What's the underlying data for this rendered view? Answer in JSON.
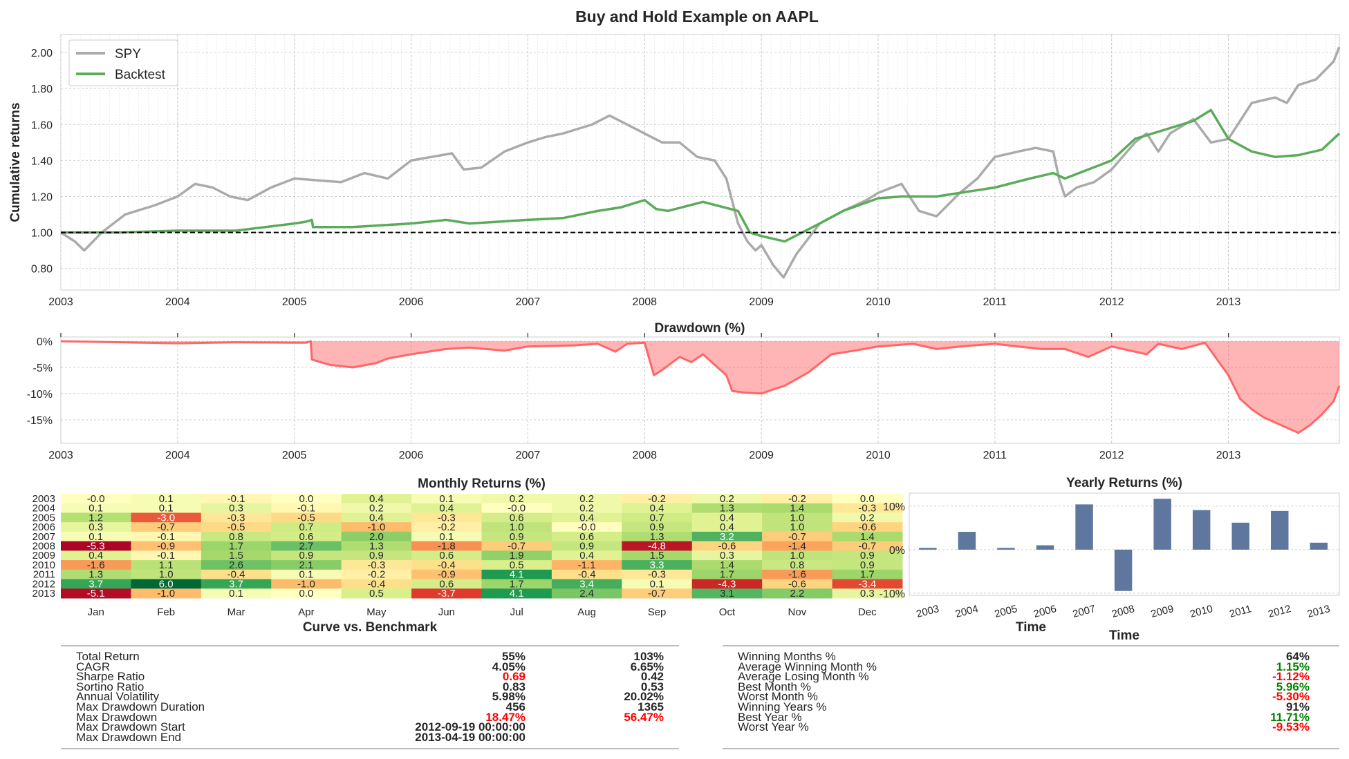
{
  "figure_title": "Buy and Hold Example on AAPL",
  "colors": {
    "spy": "#aaaaaa",
    "backtest": "#5aab5a",
    "drawdown": "#ff5a5a",
    "bars": "#5f769e",
    "positive": "#008000",
    "negative": "#ff0000"
  },
  "chart_data": [
    {
      "id": "cumulative",
      "type": "line",
      "title": "",
      "xlabel": "",
      "ylabel": "Cumulative returns",
      "xlim": [
        2003,
        2013.95
      ],
      "ylim": [
        0.68,
        2.1
      ],
      "x_ticks": [
        "2003",
        "2004",
        "2005",
        "2006",
        "2007",
        "2008",
        "2009",
        "2010",
        "2011",
        "2012",
        "2013"
      ],
      "y_ticks": [
        "0.80",
        "1.00",
        "1.20",
        "1.40",
        "1.60",
        "1.80",
        "2.00"
      ],
      "y_tick_values": [
        0.8,
        1.0,
        1.2,
        1.4,
        1.6,
        1.8,
        2.0
      ],
      "reference_line": 1.0,
      "legend": {
        "position": "top-left",
        "entries": [
          "SPY",
          "Backtest"
        ]
      },
      "grid": true,
      "series": [
        {
          "name": "SPY",
          "x": [
            2003.0,
            2003.12,
            2003.2,
            2003.35,
            2003.55,
            2003.8,
            2004.0,
            2004.15,
            2004.3,
            2004.45,
            2004.6,
            2004.8,
            2005.0,
            2005.2,
            2005.4,
            2005.6,
            2005.8,
            2006.0,
            2006.35,
            2006.45,
            2006.6,
            2006.8,
            2007.0,
            2007.15,
            2007.3,
            2007.45,
            2007.55,
            2007.7,
            2007.85,
            2008.0,
            2008.15,
            2008.3,
            2008.45,
            2008.6,
            2008.7,
            2008.8,
            2008.88,
            2008.95,
            2009.0,
            2009.1,
            2009.19,
            2009.3,
            2009.5,
            2009.7,
            2009.9,
            2010.0,
            2010.2,
            2010.35,
            2010.5,
            2010.7,
            2010.85,
            2011.0,
            2011.2,
            2011.35,
            2011.5,
            2011.55,
            2011.6,
            2011.7,
            2011.85,
            2012.0,
            2012.2,
            2012.3,
            2012.4,
            2012.5,
            2012.7,
            2012.85,
            2013.0,
            2013.2,
            2013.4,
            2013.5,
            2013.6,
            2013.75,
            2013.9,
            2013.95
          ],
          "y": [
            1.0,
            0.95,
            0.9,
            1.0,
            1.1,
            1.15,
            1.2,
            1.27,
            1.25,
            1.2,
            1.18,
            1.25,
            1.3,
            1.29,
            1.28,
            1.33,
            1.3,
            1.4,
            1.44,
            1.35,
            1.36,
            1.45,
            1.5,
            1.53,
            1.55,
            1.58,
            1.6,
            1.65,
            1.6,
            1.55,
            1.5,
            1.5,
            1.42,
            1.4,
            1.3,
            1.05,
            0.95,
            0.9,
            0.93,
            0.82,
            0.75,
            0.88,
            1.05,
            1.12,
            1.18,
            1.22,
            1.27,
            1.12,
            1.09,
            1.22,
            1.3,
            1.42,
            1.45,
            1.47,
            1.45,
            1.3,
            1.2,
            1.25,
            1.28,
            1.35,
            1.5,
            1.55,
            1.45,
            1.55,
            1.63,
            1.5,
            1.52,
            1.72,
            1.75,
            1.72,
            1.82,
            1.85,
            1.95,
            2.03
          ]
        },
        {
          "name": "Backtest",
          "x": [
            2003.0,
            2003.5,
            2004.0,
            2004.5,
            2005.0,
            2005.1,
            2005.15,
            2005.16,
            2005.5,
            2006.0,
            2006.3,
            2006.5,
            2007.0,
            2007.3,
            2007.6,
            2007.8,
            2008.0,
            2008.1,
            2008.2,
            2008.5,
            2008.8,
            2008.9,
            2009.0,
            2009.2,
            2009.5,
            2009.7,
            2010.0,
            2010.2,
            2010.5,
            2010.8,
            2011.0,
            2011.3,
            2011.5,
            2011.6,
            2011.8,
            2012.0,
            2012.2,
            2012.5,
            2012.7,
            2012.85,
            2013.0,
            2013.2,
            2013.4,
            2013.6,
            2013.8,
            2013.95
          ],
          "y": [
            1.0,
            1.0,
            1.01,
            1.01,
            1.05,
            1.06,
            1.07,
            1.03,
            1.03,
            1.05,
            1.07,
            1.05,
            1.07,
            1.08,
            1.12,
            1.14,
            1.18,
            1.13,
            1.12,
            1.17,
            1.12,
            1.0,
            0.98,
            0.95,
            1.05,
            1.12,
            1.19,
            1.2,
            1.2,
            1.23,
            1.25,
            1.3,
            1.33,
            1.3,
            1.35,
            1.4,
            1.52,
            1.58,
            1.62,
            1.68,
            1.52,
            1.45,
            1.42,
            1.43,
            1.46,
            1.55
          ]
        }
      ]
    },
    {
      "id": "drawdown",
      "type": "area",
      "title": "Drawdown (%)",
      "xlim": [
        2003,
        2013.95
      ],
      "ylim": [
        -19.5,
        0.8
      ],
      "x_ticks": [
        "2003",
        "2004",
        "2005",
        "2006",
        "2007",
        "2008",
        "2009",
        "2010",
        "2011",
        "2012",
        "2013"
      ],
      "y_ticks": [
        "0%",
        "-5%",
        "-10%",
        "-15%"
      ],
      "y_tick_values": [
        0,
        -5,
        -10,
        -15
      ],
      "grid": true,
      "series": [
        {
          "name": "",
          "x": [
            2003.0,
            2004.0,
            2004.5,
            2005.0,
            2005.1,
            2005.14,
            2005.15,
            2005.3,
            2005.5,
            2005.7,
            2005.8,
            2006.0,
            2006.3,
            2006.5,
            2006.8,
            2007.0,
            2007.4,
            2007.6,
            2007.75,
            2007.85,
            2008.0,
            2008.08,
            2008.15,
            2008.3,
            2008.4,
            2008.5,
            2008.6,
            2008.7,
            2008.75,
            2008.85,
            2009.0,
            2009.1,
            2009.2,
            2009.4,
            2009.6,
            2009.8,
            2010.0,
            2010.3,
            2010.5,
            2010.7,
            2011.0,
            2011.2,
            2011.4,
            2011.6,
            2011.8,
            2012.0,
            2012.3,
            2012.4,
            2012.6,
            2012.8,
            2013.0,
            2013.1,
            2013.2,
            2013.3,
            2013.4,
            2013.5,
            2013.6,
            2013.7,
            2013.8,
            2013.9,
            2013.95
          ],
          "y": [
            0,
            -0.4,
            -0.2,
            -0.3,
            -0.3,
            0,
            -3.5,
            -4.5,
            -5.0,
            -4.2,
            -3.3,
            -2.5,
            -1.5,
            -1.2,
            -1.8,
            -1.0,
            -0.8,
            -0.5,
            -2.0,
            -0.5,
            -0.3,
            -6.5,
            -5.5,
            -3.0,
            -4.0,
            -2.5,
            -4.5,
            -6.5,
            -9.5,
            -9.8,
            -10.0,
            -9.2,
            -8.5,
            -6.0,
            -2.5,
            -1.8,
            -1.0,
            -0.5,
            -1.5,
            -1.0,
            -0.5,
            -1.0,
            -1.5,
            -1.5,
            -3.0,
            -1.0,
            -2.5,
            -0.5,
            -1.5,
            -0.3,
            -6.5,
            -11.0,
            -13.0,
            -14.5,
            -15.5,
            -16.5,
            -17.5,
            -16.0,
            -14.0,
            -11.5,
            -8.5
          ]
        }
      ]
    },
    {
      "id": "monthly",
      "type": "heatmap",
      "title": "Monthly Returns (%)",
      "columns": [
        "Jan",
        "Feb",
        "Mar",
        "Apr",
        "May",
        "Jun",
        "Jul",
        "Aug",
        "Sep",
        "Oct",
        "Nov",
        "Dec"
      ],
      "rows": [
        "2003",
        "2004",
        "2005",
        "2006",
        "2007",
        "2008",
        "2009",
        "2010",
        "2011",
        "2012",
        "2013"
      ],
      "values": [
        [
          -0.0,
          0.1,
          -0.1,
          0.0,
          0.4,
          0.1,
          0.2,
          0.2,
          -0.2,
          0.2,
          -0.2,
          0.0
        ],
        [
          0.1,
          0.1,
          0.3,
          -0.1,
          0.2,
          0.4,
          -0.0,
          0.2,
          0.4,
          1.3,
          1.4,
          -0.3
        ],
        [
          1.2,
          -3.0,
          -0.3,
          -0.5,
          0.4,
          -0.3,
          0.6,
          0.4,
          0.7,
          0.4,
          1.0,
          0.2
        ],
        [
          0.3,
          -0.7,
          -0.5,
          0.7,
          -1.0,
          -0.2,
          1.0,
          -0.0,
          0.9,
          0.4,
          1.0,
          -0.6
        ],
        [
          0.1,
          -0.1,
          0.8,
          0.6,
          2.0,
          0.1,
          0.9,
          0.6,
          1.3,
          3.2,
          -0.7,
          1.4
        ],
        [
          -5.3,
          -0.9,
          1.7,
          2.7,
          1.3,
          -1.8,
          -0.7,
          0.9,
          -4.8,
          -0.6,
          -1.4,
          -0.7
        ],
        [
          0.4,
          -0.1,
          1.5,
          0.9,
          0.9,
          0.6,
          1.9,
          0.4,
          1.5,
          0.3,
          1.0,
          0.9
        ],
        [
          -1.6,
          1.1,
          2.6,
          2.1,
          -0.3,
          -0.4,
          0.5,
          -1.1,
          3.3,
          1.4,
          0.8,
          0.9
        ],
        [
          1.3,
          1.0,
          -0.4,
          0.1,
          -0.2,
          -0.9,
          4.1,
          -0.4,
          -0.3,
          1.7,
          -1.6,
          1.7
        ],
        [
          3.7,
          6.0,
          3.7,
          -1.0,
          -0.4,
          0.6,
          1.7,
          3.4,
          0.1,
          -4.3,
          -0.6,
          -3.4
        ],
        [
          -5.1,
          -1.0,
          0.1,
          0.0,
          0.5,
          -3.7,
          4.1,
          2.4,
          -0.7,
          3.1,
          2.2,
          0.3
        ]
      ],
      "labels": [
        [
          "-0.0",
          "0.1",
          "-0.1",
          "0.0",
          "0.4",
          "0.1",
          "0.2",
          "0.2",
          "-0.2",
          "0.2",
          "-0.2",
          "0.0"
        ],
        [
          "0.1",
          "0.1",
          "0.3",
          "-0.1",
          "0.2",
          "0.4",
          "-0.0",
          "0.2",
          "0.4",
          "1.3",
          "1.4",
          "-0.3"
        ],
        [
          "1.2",
          "-3.0",
          "-0.3",
          "-0.5",
          "0.4",
          "-0.3",
          "0.6",
          "0.4",
          "0.7",
          "0.4",
          "1.0",
          "0.2"
        ],
        [
          "0.3",
          "-0.7",
          "-0.5",
          "0.7",
          "-1.0",
          "-0.2",
          "1.0",
          "-0.0",
          "0.9",
          "0.4",
          "1.0",
          "-0.6"
        ],
        [
          "0.1",
          "-0.1",
          "0.8",
          "0.6",
          "2.0",
          "0.1",
          "0.9",
          "0.6",
          "1.3",
          "3.2",
          "-0.7",
          "1.4"
        ],
        [
          "-5.3",
          "-0.9",
          "1.7",
          "2.7",
          "1.3",
          "-1.8",
          "-0.7",
          "0.9",
          "-4.8",
          "-0.6",
          "-1.4",
          "-0.7"
        ],
        [
          "0.4",
          "-0.1",
          "1.5",
          "0.9",
          "0.9",
          "0.6",
          "1.9",
          "0.4",
          "1.5",
          "0.3",
          "1.0",
          "0.9"
        ],
        [
          "-1.6",
          "1.1",
          "2.6",
          "2.1",
          "-0.3",
          "-0.4",
          "0.5",
          "-1.1",
          "3.3",
          "1.4",
          "0.8",
          "0.9"
        ],
        [
          "1.3",
          "1.0",
          "-0.4",
          "0.1",
          "-0.2",
          "-0.9",
          "4.1",
          "-0.4",
          "-0.3",
          "1.7",
          "-1.6",
          "1.7"
        ],
        [
          "3.7",
          "6.0",
          "3.7",
          "-1.0",
          "-0.4",
          "0.6",
          "1.7",
          "3.4",
          "0.1",
          "-4.3",
          "-0.6",
          "-3.4"
        ],
        [
          "-5.1",
          "-1.0",
          "0.1",
          "0.0",
          "0.5",
          "-3.7",
          "4.1",
          "2.4",
          "-0.7",
          "3.1",
          "2.2",
          "0.3"
        ]
      ],
      "colormap": "RdYlGn"
    },
    {
      "id": "yearly",
      "type": "bar",
      "title": "Yearly Returns (%)",
      "xlabel": "Time",
      "categories": [
        "2003",
        "2004",
        "2005",
        "2006",
        "2007",
        "2008",
        "2009",
        "2010",
        "2011",
        "2012",
        "2013"
      ],
      "values": [
        0.4,
        4.1,
        0.4,
        1.0,
        10.4,
        -9.5,
        11.7,
        9.1,
        6.2,
        8.9,
        1.6
      ],
      "ylim": [
        -10.5,
        13
      ],
      "y_ticks": [
        "10%",
        "0%",
        "-10%"
      ],
      "y_tick_values": [
        10,
        0,
        -10
      ],
      "grid": true
    }
  ],
  "stats_left": {
    "title": "Curve vs. Benchmark",
    "rows": [
      {
        "label": "Total Return",
        "v1": "55%",
        "v2": "103%",
        "c1": "",
        "c2": ""
      },
      {
        "label": "CAGR",
        "v1": "4.05%",
        "v2": "6.65%",
        "c1": "",
        "c2": ""
      },
      {
        "label": "Sharpe Ratio",
        "v1": "0.69",
        "v2": "0.42",
        "c1": "negative",
        "c2": ""
      },
      {
        "label": "Sortino Ratio",
        "v1": "0.83",
        "v2": "0.53",
        "c1": "",
        "c2": ""
      },
      {
        "label": "Annual Volatility",
        "v1": "5.98%",
        "v2": "20.02%",
        "c1": "",
        "c2": ""
      },
      {
        "label": "Max Drawdown Duration",
        "v1": "456",
        "v2": "1365",
        "c1": "",
        "c2": ""
      },
      {
        "label": "Max Drawdown",
        "v1": "18.47%",
        "v2": "56.47%",
        "c1": "negative",
        "c2": "negative"
      },
      {
        "label": "Max Drawdown Start",
        "v1": "2012-09-19 00:00:00",
        "v2": "",
        "c1": "",
        "c2": ""
      },
      {
        "label": "Max Drawdown End",
        "v1": "2013-04-19 00:00:00",
        "v2": "",
        "c1": "",
        "c2": ""
      }
    ]
  },
  "stats_right": {
    "title": "Time",
    "rows": [
      {
        "label": "Winning Months %",
        "v1": "64%",
        "c1": ""
      },
      {
        "label": "Average Winning Month %",
        "v1": "1.15%",
        "c1": "positive"
      },
      {
        "label": "Average Losing Month %",
        "v1": "-1.12%",
        "c1": "negative"
      },
      {
        "label": "Best Month %",
        "v1": "5.96%",
        "c1": "positive"
      },
      {
        "label": "Worst Month %",
        "v1": "-5.30%",
        "c1": "negative"
      },
      {
        "label": "Winning Years %",
        "v1": "91%",
        "c1": ""
      },
      {
        "label": "Best Year %",
        "v1": "11.71%",
        "c1": "positive"
      },
      {
        "label": "Worst Year %",
        "v1": "-9.53%",
        "c1": "negative"
      }
    ]
  }
}
